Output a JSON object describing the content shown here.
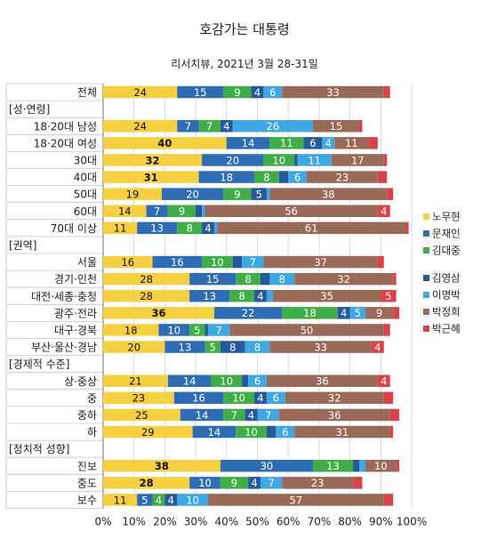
{
  "chart_data": {
    "type": "bar",
    "title": "호감가는 대통령",
    "subtitle": "리서치뷰, 2021년 3월 28-31일",
    "orientation": "horizontal",
    "stacked": true,
    "xlim": [
      0,
      100
    ],
    "xunit": "%",
    "xticks": [
      "0%",
      "10%",
      "20%",
      "30%",
      "40%",
      "50%",
      "60%",
      "70%",
      "80%",
      "90%",
      "100%"
    ],
    "legend_position": "right",
    "groups": [
      {
        "name": "",
        "rows": [
          "전체"
        ]
      },
      {
        "name": "[성·연령]",
        "rows": [
          "18·20대 남성",
          "18·20대 여성",
          "30대",
          "40대",
          "50대",
          "60대",
          "70대 이상"
        ]
      },
      {
        "name": "[권역]",
        "rows": [
          "서울",
          "경기·인천",
          "대전·세종·충청",
          "광주·전라",
          "대구·경북",
          "부산·울산·경남"
        ]
      },
      {
        "name": "[경제적 수준]",
        "rows": [
          "상·중상",
          "중",
          "중하",
          "하"
        ]
      },
      {
        "name": "[정치적 성향]",
        "rows": [
          "진보",
          "중도",
          "보수"
        ]
      }
    ],
    "series": [
      {
        "name": "노무현",
        "color": "#f5d142",
        "values": [
          24,
          24,
          40,
          32,
          31,
          19,
          14,
          11,
          16,
          28,
          28,
          36,
          18,
          20,
          21,
          23,
          25,
          29,
          38,
          28,
          11
        ]
      },
      {
        "name": "문재인",
        "color": "#2e6db4",
        "values": [
          15,
          7,
          14,
          20,
          18,
          20,
          7,
          13,
          16,
          15,
          13,
          22,
          10,
          13,
          14,
          16,
          14,
          14,
          30,
          10,
          5
        ]
      },
      {
        "name": "김대중",
        "color": "#3fae49",
        "values": [
          9,
          7,
          11,
          10,
          8,
          9,
          9,
          8,
          10,
          8,
          8,
          18,
          5,
          5,
          10,
          10,
          7,
          10,
          13,
          9,
          4
        ]
      },
      {
        "name": "김영삼",
        "color": "#27589b",
        "values": [
          4,
          4,
          6,
          1,
          3,
          5,
          2,
          4,
          3,
          3,
          4,
          4,
          1,
          8,
          2,
          4,
          4,
          3,
          2,
          4,
          4
        ]
      },
      {
        "name": "이명박",
        "color": "#3fa8e3",
        "values": [
          6,
          26,
          4,
          11,
          6,
          1,
          1,
          1,
          7,
          8,
          2,
          5,
          7,
          8,
          6,
          6,
          7,
          6,
          2,
          7,
          10
        ]
      },
      {
        "name": "박정희",
        "color": "#9a6a58",
        "values": [
          33,
          15,
          11,
          17,
          23,
          38,
          56,
          61,
          37,
          32,
          35,
          9,
          50,
          33,
          36,
          32,
          36,
          31,
          10,
          23,
          57
        ]
      },
      {
        "name": "박근혜",
        "color": "#d94348",
        "values": [
          2,
          1,
          3,
          1,
          3,
          2,
          4,
          1,
          2,
          1,
          5,
          2,
          2,
          4,
          4,
          3,
          3,
          1,
          1,
          3,
          3
        ]
      }
    ],
    "hidden_labels_below": 4,
    "bold_series": [
      "노무현"
    ],
    "bold_rows": [
      "18·20대 여성",
      "30대",
      "40대",
      "광주·전라",
      "진보",
      "중도"
    ]
  }
}
